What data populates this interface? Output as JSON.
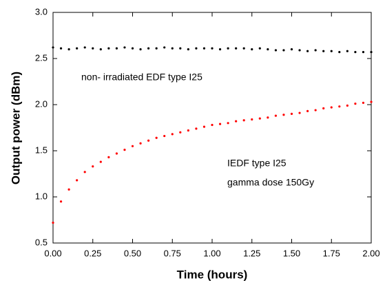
{
  "chart_data": {
    "type": "scatter",
    "x_label": "Time (hours)",
    "y_label": "Output power (dBm)",
    "annotations": [
      "non- irradiated EDF type I25",
      "IEDF type I25",
      "gamma dose 150Gy"
    ],
    "x": [
      0,
      0.05,
      0.1,
      0.15,
      0.2,
      0.25,
      0.3,
      0.35,
      0.4,
      0.45,
      0.5,
      0.55,
      0.6,
      0.65,
      0.7,
      0.75,
      0.8,
      0.85,
      0.9,
      0.95,
      1.0,
      1.05,
      1.1,
      1.15,
      1.2,
      1.25,
      1.3,
      1.35,
      1.4,
      1.45,
      1.5,
      1.55,
      1.6,
      1.65,
      1.7,
      1.75,
      1.8,
      1.85,
      1.9,
      1.95,
      2.0
    ],
    "series": [
      {
        "color": "#000000",
        "values": [
          2.62,
          2.61,
          2.6,
          2.61,
          2.62,
          2.61,
          2.6,
          2.61,
          2.61,
          2.62,
          2.61,
          2.6,
          2.61,
          2.61,
          2.62,
          2.61,
          2.61,
          2.6,
          2.61,
          2.61,
          2.61,
          2.6,
          2.61,
          2.61,
          2.61,
          2.6,
          2.61,
          2.6,
          2.59,
          2.59,
          2.6,
          2.59,
          2.58,
          2.59,
          2.58,
          2.58,
          2.57,
          2.58,
          2.57,
          2.57,
          2.57
        ]
      },
      {
        "color": "#ff0000",
        "values": [
          0.72,
          0.95,
          1.08,
          1.18,
          1.27,
          1.33,
          1.38,
          1.43,
          1.47,
          1.51,
          1.55,
          1.58,
          1.61,
          1.64,
          1.66,
          1.68,
          1.7,
          1.72,
          1.74,
          1.76,
          1.78,
          1.79,
          1.8,
          1.82,
          1.83,
          1.84,
          1.85,
          1.86,
          1.88,
          1.89,
          1.9,
          1.91,
          1.93,
          1.94,
          1.96,
          1.97,
          1.98,
          1.99,
          2.01,
          2.02,
          2.03
        ]
      }
    ],
    "xlim": [
      0,
      2
    ],
    "ylim": [
      0.5,
      3
    ],
    "xticks": [
      {
        "value": 0,
        "label": "0.00"
      },
      {
        "value": 0.25,
        "label": "0.25"
      },
      {
        "value": 0.5,
        "label": "0.50"
      },
      {
        "value": 0.75,
        "label": "0.75"
      },
      {
        "value": 1,
        "label": "1.00"
      },
      {
        "value": 1.25,
        "label": "1.25"
      },
      {
        "value": 1.5,
        "label": "1.50"
      },
      {
        "value": 1.75,
        "label": "1.75"
      },
      {
        "value": 2,
        "label": "2.00"
      }
    ],
    "yticks": [
      0.5,
      {
        "value": 1,
        "label": "1.0"
      },
      1.5,
      {
        "value": 2,
        "label": "2.0"
      },
      2.5,
      {
        "value": 3,
        "label": "3.0"
      }
    ]
  }
}
